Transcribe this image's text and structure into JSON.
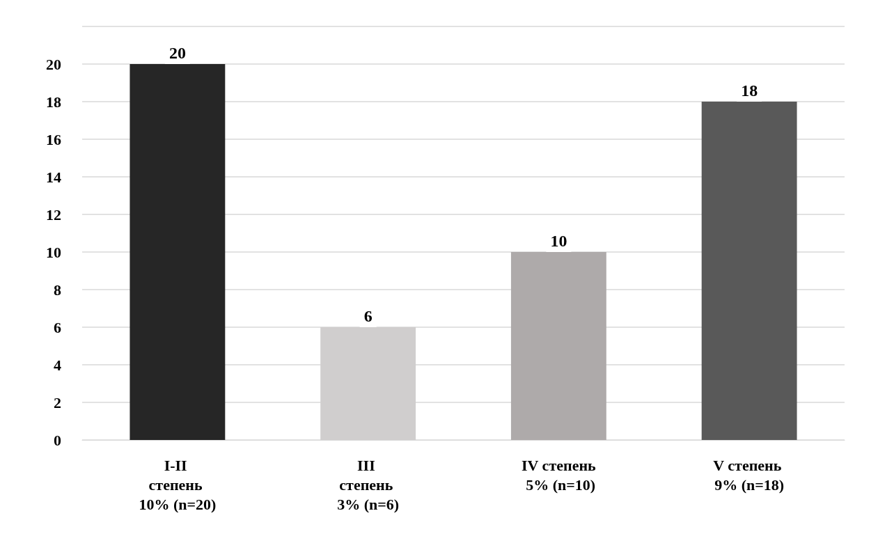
{
  "chart_data": {
    "type": "bar",
    "categories": [
      "I-II степень 10% (n=20)",
      "III степень 3% (n=6)",
      "IV степень 5% (n=10)",
      "V степень 9% (n=18)"
    ],
    "values": [
      20,
      6,
      10,
      18
    ],
    "colors": [
      "#262626",
      "#d0cece",
      "#aeaaaa",
      "#595959"
    ],
    "ylim": [
      0,
      22
    ],
    "yticks": [
      0,
      2,
      4,
      6,
      8,
      10,
      12,
      14,
      16,
      18,
      20,
      {
        "value": 22,
        "label": null
      }
    ],
    "grid": "y",
    "data_labels": true
  }
}
